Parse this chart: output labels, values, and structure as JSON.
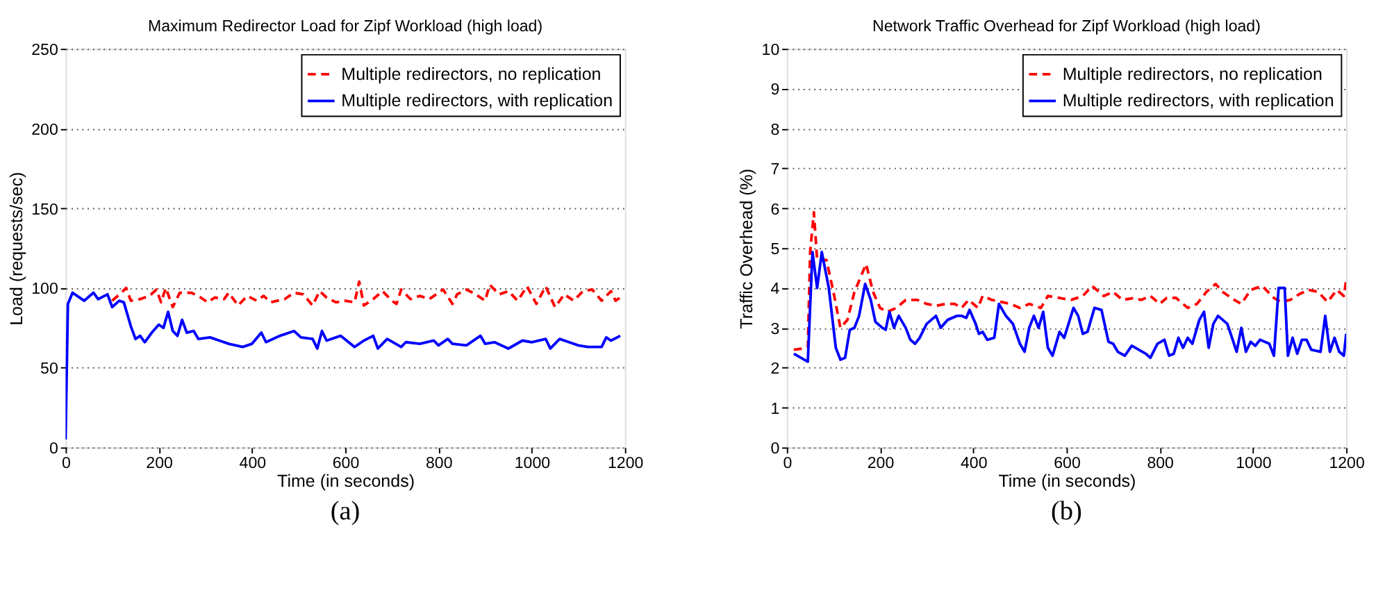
{
  "chart_data": [
    {
      "type": "line",
      "title": "Maximum Redirector Load for Zipf Workload (high load)",
      "xlabel": "Time (in seconds)",
      "ylabel": "Load (requests/sec)",
      "xlim": [
        0,
        1200
      ],
      "xticks": [
        0,
        200,
        400,
        600,
        800,
        1000,
        1200
      ],
      "ylim": [
        0,
        250
      ],
      "yticks": [
        0,
        50,
        100,
        150,
        200,
        250
      ],
      "grid": "y",
      "legend": "top right",
      "annotations": [
        "(a)"
      ],
      "series": [
        {
          "name": "Multiple redirectors, no replication",
          "color": "#ff0000",
          "line_style": "dashed",
          "x": [
            100,
            120,
            130,
            140,
            160,
            180,
            195,
            205,
            215,
            230,
            245,
            270,
            290,
            305,
            320,
            340,
            350,
            370,
            390,
            410,
            425,
            440,
            470,
            490,
            510,
            530,
            545,
            560,
            580,
            600,
            620,
            630,
            640,
            660,
            680,
            700,
            710,
            720,
            740,
            760,
            780,
            810,
            830,
            840,
            860,
            880,
            900,
            910,
            930,
            950,
            970,
            990,
            1010,
            1030,
            1050,
            1070,
            1090,
            1110,
            1130,
            1150,
            1170,
            1180,
            1195
          ],
          "values": [
            92,
            97,
            100,
            92,
            93,
            95,
            99,
            91,
            100,
            88,
            97,
            97,
            94,
            91,
            94,
            93,
            97,
            89,
            95,
            92,
            95,
            91,
            93,
            97,
            96,
            89,
            98,
            94,
            91,
            92,
            91,
            104,
            89,
            93,
            98,
            92,
            90,
            99,
            93,
            95,
            93,
            99,
            90,
            96,
            99,
            96,
            92,
            102,
            96,
            98,
            92,
            101,
            90,
            101,
            88,
            96,
            92,
            98,
            99,
            92,
            98,
            92,
            95
          ]
        },
        {
          "name": "Multiple redirectors, with replication",
          "color": "#0000ff",
          "line_style": "solid",
          "x": [
            0,
            5,
            15,
            40,
            60,
            70,
            90,
            100,
            115,
            125,
            140,
            150,
            160,
            170,
            185,
            200,
            210,
            220,
            230,
            240,
            250,
            260,
            275,
            285,
            310,
            330,
            350,
            380,
            400,
            420,
            430,
            460,
            490,
            505,
            530,
            540,
            550,
            560,
            590,
            620,
            640,
            660,
            670,
            690,
            720,
            730,
            760,
            790,
            800,
            820,
            830,
            860,
            890,
            900,
            920,
            950,
            980,
            1000,
            1030,
            1040,
            1060,
            1080,
            1100,
            1120,
            1150,
            1160,
            1170,
            1190
          ],
          "values": [
            5,
            90,
            97,
            92,
            97,
            93,
            96,
            88,
            92,
            91,
            76,
            68,
            70,
            66,
            72,
            77,
            75,
            85,
            73,
            70,
            80,
            72,
            73,
            68,
            69,
            67,
            65,
            63,
            65,
            72,
            66,
            70,
            73,
            69,
            68,
            62,
            73,
            67,
            70,
            63,
            67,
            70,
            62,
            68,
            63,
            66,
            65,
            67,
            64,
            68,
            65,
            64,
            70,
            65,
            66,
            62,
            67,
            66,
            68,
            62,
            68,
            66,
            64,
            63,
            63,
            69,
            67,
            70
          ]
        }
      ]
    },
    {
      "type": "line",
      "title": "Network Traffic Overhead for Zipf Workload (high load)",
      "xlabel": "Time (in seconds)",
      "ylabel": "Traffic Overhead (%)",
      "xlim": [
        0,
        1200
      ],
      "xticks": [
        0,
        200,
        400,
        600,
        800,
        1000,
        1200
      ],
      "ylim": [
        0,
        10
      ],
      "yticks": [
        0,
        1,
        2,
        3,
        4,
        5,
        6,
        7,
        8,
        9,
        10
      ],
      "grid": "y",
      "legend": "top right",
      "annotations": [
        "(b)"
      ],
      "series": [
        {
          "name": "Multiple redirectors, no replication",
          "color": "#ff0000",
          "line_style": "dashed",
          "x": [
            15,
            45,
            50,
            58,
            65,
            85,
            100,
            115,
            130,
            145,
            170,
            185,
            200,
            215,
            235,
            255,
            280,
            300,
            320,
            340,
            360,
            375,
            390,
            410,
            420,
            440,
            460,
            480,
            500,
            520,
            545,
            560,
            585,
            610,
            635,
            655,
            680,
            700,
            720,
            745,
            760,
            780,
            800,
            815,
            835,
            860,
            880,
            900,
            920,
            935,
            960,
            975,
            995,
            1020,
            1045,
            1060,
            1080,
            1100,
            1120,
            1140,
            1160,
            1180,
            1195,
            1200
          ],
          "values": [
            2.45,
            2.5,
            4.9,
            5.9,
            4.7,
            4.7,
            3.9,
            3.0,
            3.2,
            3.9,
            4.6,
            3.9,
            3.5,
            3.4,
            3.5,
            3.7,
            3.7,
            3.6,
            3.55,
            3.6,
            3.6,
            3.5,
            3.7,
            3.5,
            3.8,
            3.7,
            3.65,
            3.6,
            3.5,
            3.6,
            3.5,
            3.8,
            3.75,
            3.7,
            3.8,
            4.05,
            3.8,
            3.9,
            3.7,
            3.75,
            3.7,
            3.8,
            3.6,
            3.75,
            3.75,
            3.5,
            3.6,
            3.9,
            4.1,
            3.9,
            3.7,
            3.6,
            3.95,
            4.05,
            3.75,
            3.65,
            3.7,
            3.85,
            3.95,
            3.9,
            3.65,
            3.95,
            3.8,
            4.2
          ]
        },
        {
          "name": "Multiple redirectors, with replication",
          "color": "#0000ff",
          "line_style": "solid",
          "x": [
            15,
            30,
            45,
            55,
            65,
            75,
            90,
            105,
            115,
            125,
            135,
            145,
            155,
            168,
            180,
            190,
            205,
            212,
            220,
            230,
            240,
            255,
            265,
            275,
            285,
            300,
            310,
            320,
            330,
            345,
            365,
            375,
            385,
            392,
            405,
            412,
            420,
            430,
            445,
            455,
            470,
            485,
            500,
            510,
            520,
            530,
            540,
            550,
            560,
            570,
            585,
            595,
            615,
            625,
            635,
            645,
            660,
            675,
            690,
            700,
            710,
            725,
            740,
            755,
            770,
            780,
            795,
            810,
            820,
            830,
            840,
            850,
            860,
            870,
            885,
            895,
            905,
            915,
            925,
            945,
            955,
            965,
            975,
            985,
            995,
            1005,
            1015,
            1035,
            1045,
            1055,
            1068,
            1075,
            1085,
            1095,
            1105,
            1115,
            1125,
            1145,
            1155,
            1165,
            1175,
            1185,
            1195,
            1200
          ],
          "values": [
            2.35,
            2.25,
            2.15,
            4.9,
            4.0,
            4.9,
            4.0,
            2.5,
            2.2,
            2.25,
            2.95,
            3.0,
            3.3,
            4.1,
            3.7,
            3.15,
            3.0,
            2.95,
            3.4,
            3.0,
            3.3,
            3.0,
            2.7,
            2.6,
            2.75,
            3.1,
            3.2,
            3.3,
            3.0,
            3.2,
            3.3,
            3.3,
            3.25,
            3.45,
            3.1,
            2.85,
            2.9,
            2.7,
            2.75,
            3.6,
            3.3,
            3.1,
            2.6,
            2.4,
            3.0,
            3.3,
            3.0,
            3.4,
            2.5,
            2.3,
            2.9,
            2.75,
            3.5,
            3.3,
            2.85,
            2.9,
            3.5,
            3.45,
            2.65,
            2.6,
            2.4,
            2.3,
            2.55,
            2.45,
            2.35,
            2.25,
            2.6,
            2.7,
            2.3,
            2.35,
            2.75,
            2.5,
            2.75,
            2.6,
            3.2,
            3.4,
            2.5,
            3.1,
            3.3,
            3.1,
            2.75,
            2.4,
            3.0,
            2.4,
            2.65,
            2.55,
            2.7,
            2.6,
            2.3,
            4.0,
            4.0,
            2.3,
            2.75,
            2.35,
            2.7,
            2.7,
            2.45,
            2.4,
            3.3,
            2.4,
            2.75,
            2.4,
            2.3,
            2.85
          ]
        }
      ]
    }
  ]
}
